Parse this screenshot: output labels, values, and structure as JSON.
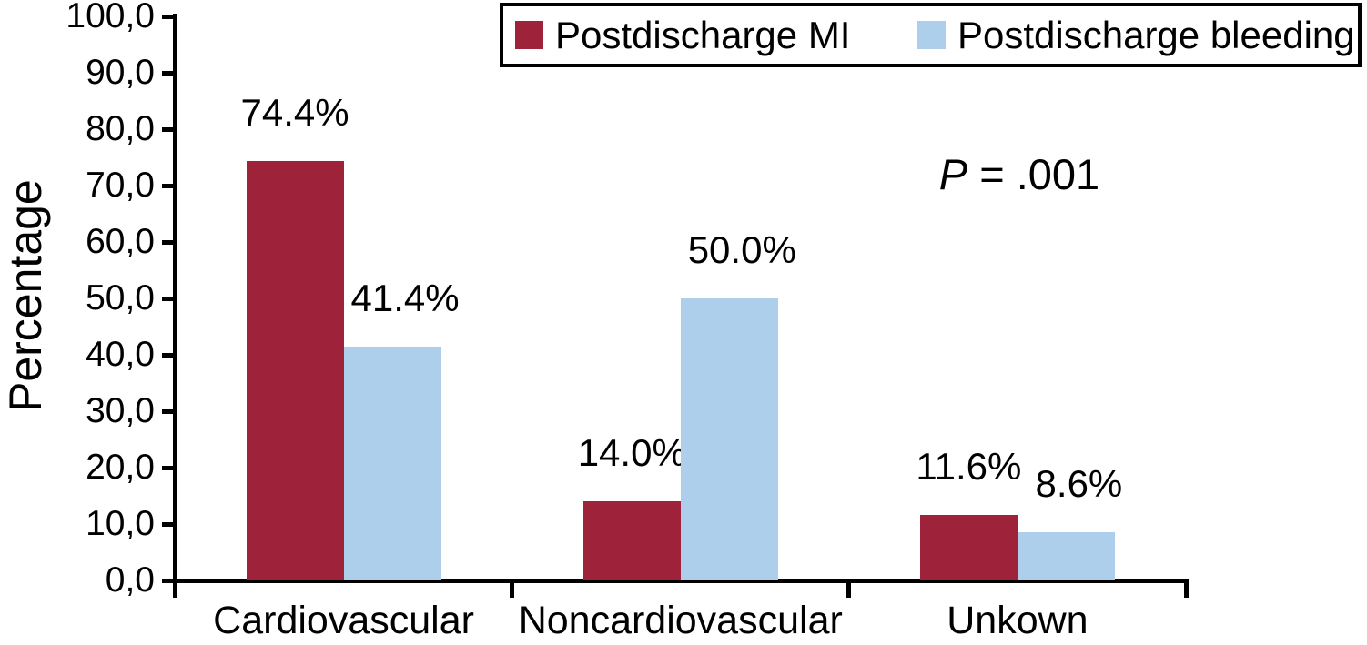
{
  "chart_data": {
    "type": "bar",
    "title": "",
    "xlabel": "",
    "ylabel": "Percentage",
    "ylim": [
      0,
      100
    ],
    "ytick_step": 10,
    "ytick_labels": [
      "0,0",
      "10,0",
      "20,0",
      "30,0",
      "40,0",
      "50,0",
      "60,0",
      "70,0",
      "80,0",
      "90,0",
      "100,0"
    ],
    "categories": [
      "Cardiovascular",
      "Noncardiovascular",
      "Unkown"
    ],
    "series": [
      {
        "name": "Postdischarge MI",
        "color": "#9E2239",
        "values": [
          74.4,
          14.0,
          11.6
        ],
        "value_labels": [
          "74.4%",
          "14.0%",
          "11.6%"
        ]
      },
      {
        "name": "Postdischarge bleeding",
        "color": "#AECFEB",
        "values": [
          41.4,
          50.0,
          8.6
        ],
        "value_labels": [
          "41.4%",
          "50.0%",
          "8.6%"
        ]
      }
    ],
    "grid": false,
    "legend_position": "top",
    "annotation": {
      "italic_part": "P",
      "normal_part": " = .001",
      "text": "P = .001"
    }
  }
}
